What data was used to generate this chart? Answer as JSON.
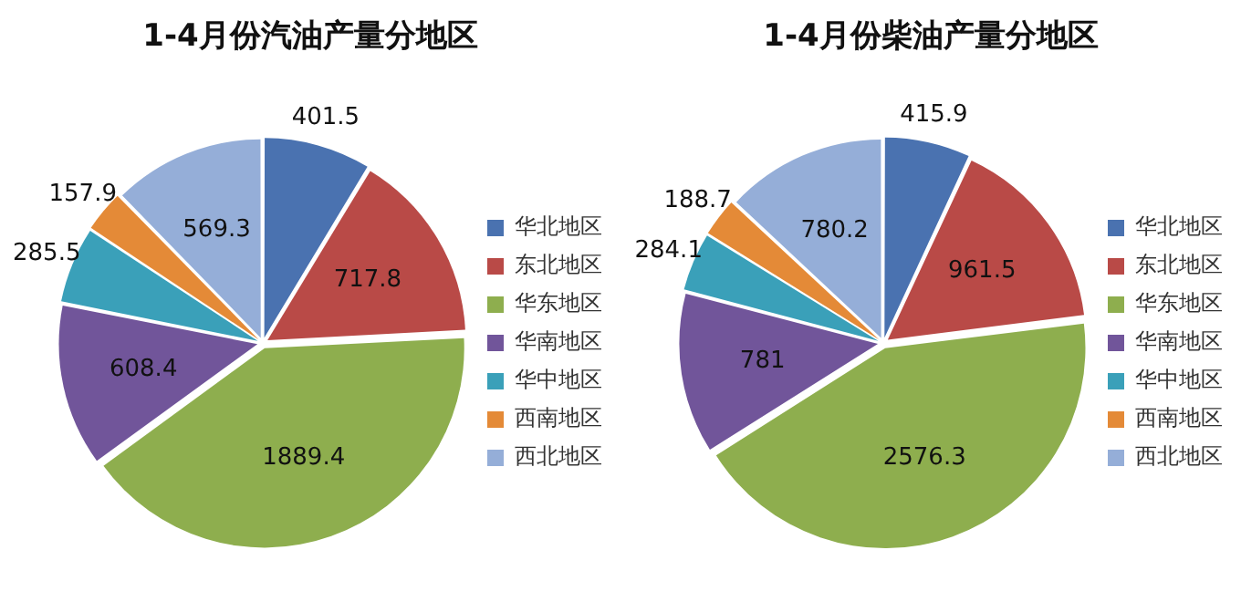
{
  "chart_data": [
    {
      "type": "pie",
      "title": "1-4月份汽油产量分地区",
      "categories": [
        "华北地区",
        "东北地区",
        "华东地区",
        "华南地区",
        "华中地区",
        "西南地区",
        "西北地区"
      ],
      "values": [
        401.5,
        717.8,
        1889.4,
        608.4,
        285.5,
        157.9,
        569.3
      ],
      "colors": [
        "#4a72b0",
        "#b94a47",
        "#8eae4e",
        "#71559a",
        "#3aa0b9",
        "#e48a37",
        "#95aed8"
      ],
      "data_labels": true,
      "legend": "right"
    },
    {
      "type": "pie",
      "title": "1-4月份柴油产量分地区",
      "categories": [
        "华北地区",
        "东北地区",
        "华东地区",
        "华南地区",
        "华中地区",
        "西南地区",
        "西北地区"
      ],
      "values": [
        415.9,
        961.5,
        2576.3,
        781,
        284.1,
        188.7,
        780.2
      ],
      "colors": [
        "#4a72b0",
        "#b94a47",
        "#8eae4e",
        "#71559a",
        "#3aa0b9",
        "#e48a37",
        "#95aed8"
      ],
      "data_labels": true,
      "legend": "right"
    }
  ]
}
